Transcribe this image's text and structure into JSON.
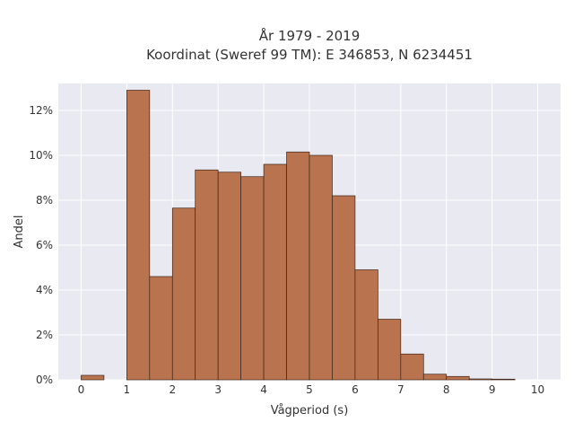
{
  "chart_data": {
    "type": "bar",
    "title_lines": [
      "År 1979 - 2019",
      "Koordinat (Sweref 99 TM): E 346853, N 6234451"
    ],
    "xlabel": "Vågperiod (s)",
    "ylabel": "Andel",
    "xlim": [
      -0.5,
      10.5
    ],
    "ylim": [
      0,
      13.2
    ],
    "x_ticks": [
      0,
      1,
      2,
      3,
      4,
      5,
      6,
      7,
      8,
      9,
      10
    ],
    "y_ticks": [
      0,
      2,
      4,
      6,
      8,
      10,
      12
    ],
    "y_tick_suffix": "%",
    "bin_width": 0.5,
    "bins": [
      {
        "x0": 0.0,
        "value": 0.2
      },
      {
        "x0": 1.0,
        "value": 12.9
      },
      {
        "x0": 1.5,
        "value": 4.6
      },
      {
        "x0": 2.0,
        "value": 7.65
      },
      {
        "x0": 2.5,
        "value": 9.35
      },
      {
        "x0": 3.0,
        "value": 9.25
      },
      {
        "x0": 3.5,
        "value": 9.05
      },
      {
        "x0": 4.0,
        "value": 9.6
      },
      {
        "x0": 4.5,
        "value": 10.15
      },
      {
        "x0": 5.0,
        "value": 10.0
      },
      {
        "x0": 5.5,
        "value": 8.2
      },
      {
        "x0": 6.0,
        "value": 4.9
      },
      {
        "x0": 6.5,
        "value": 2.7
      },
      {
        "x0": 7.0,
        "value": 1.15
      },
      {
        "x0": 7.5,
        "value": 0.25
      },
      {
        "x0": 8.0,
        "value": 0.15
      },
      {
        "x0": 8.5,
        "value": 0.04
      },
      {
        "x0": 9.0,
        "value": 0.03
      }
    ],
    "grid": true,
    "colors": {
      "bar_fill": "#b9744f",
      "bar_stroke": "#3d2518",
      "plot_bg": "#e9e9f1",
      "grid": "#ffffff"
    }
  }
}
